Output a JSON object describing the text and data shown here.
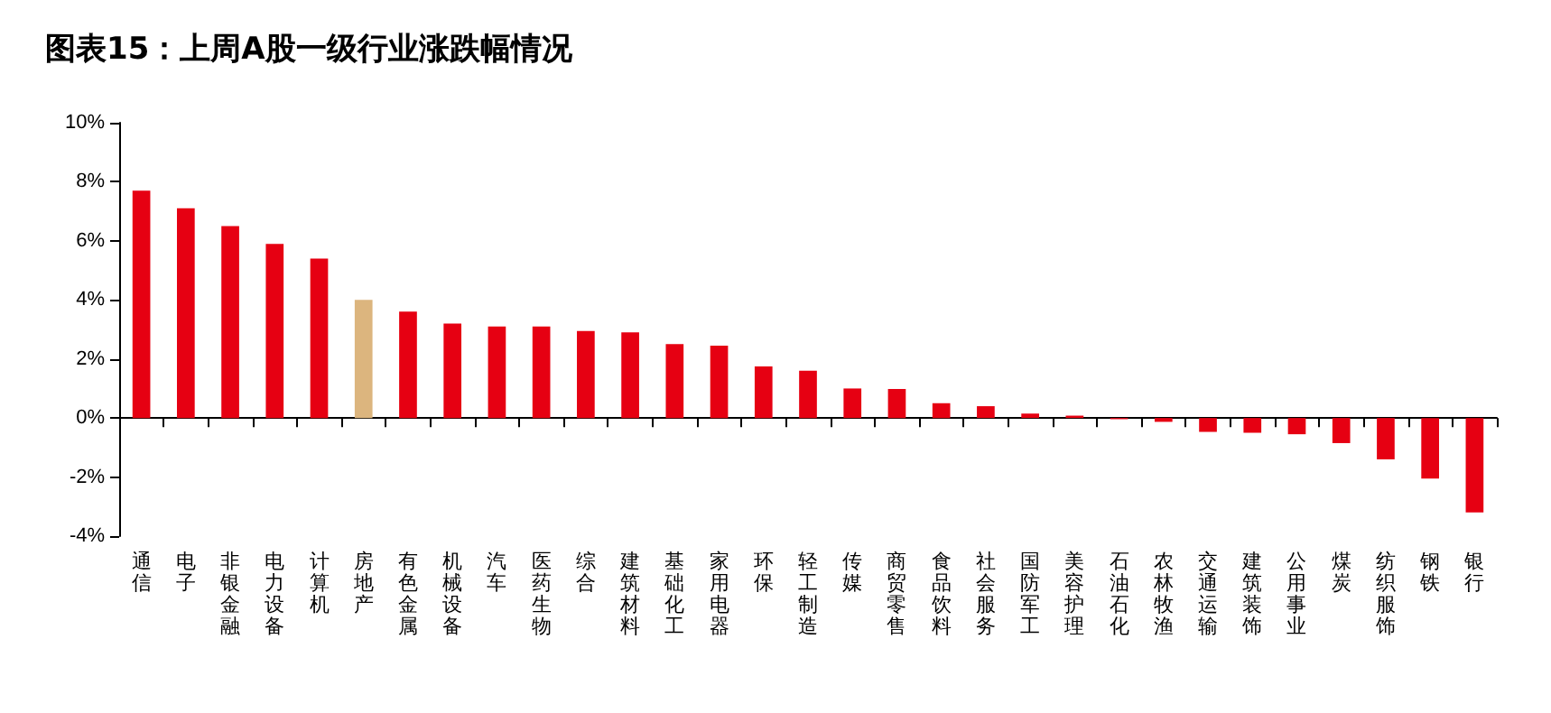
{
  "chart_data": {
    "type": "bar",
    "title": "图表15：上周A股一级行业涨跌幅情况",
    "categories": [
      "通信",
      "电子",
      "非银金融",
      "电力设备",
      "计算机",
      "房地产",
      "有色金属",
      "机械设备",
      "汽车",
      "医药生物",
      "综合",
      "建筑材料",
      "基础化工",
      "家用电器",
      "环保",
      "轻工制造",
      "传媒",
      "商贸零售",
      "食品饮料",
      "社会服务",
      "国防军工",
      "美容护理",
      "石油石化",
      "农林牧渔",
      "交通运输",
      "建筑装饰",
      "公用事业",
      "煤炭",
      "纺织服饰",
      "钢铁",
      "银行"
    ],
    "values": [
      7.7,
      7.1,
      6.5,
      5.9,
      5.4,
      4.0,
      3.6,
      3.2,
      3.1,
      3.1,
      2.95,
      2.9,
      2.5,
      2.45,
      1.75,
      1.6,
      1.0,
      0.98,
      0.5,
      0.4,
      0.15,
      0.08,
      -0.04,
      -0.13,
      -0.47,
      -0.5,
      -0.55,
      -0.85,
      -1.4,
      -2.05,
      -3.2
    ],
    "colors": [
      "#e60012",
      "#e60012",
      "#e60012",
      "#e60012",
      "#e60012",
      "#dcb57e",
      "#e60012",
      "#e60012",
      "#e60012",
      "#e60012",
      "#e60012",
      "#e60012",
      "#e60012",
      "#e60012",
      "#e60012",
      "#e60012",
      "#e60012",
      "#e60012",
      "#e60012",
      "#e60012",
      "#e60012",
      "#e60012",
      "#e60012",
      "#e60012",
      "#e60012",
      "#e60012",
      "#e60012",
      "#e60012",
      "#e60012",
      "#e60012",
      "#e60012"
    ],
    "ylim": [
      -4,
      10
    ],
    "yticks": [
      {
        "value": -4,
        "label": "-4%"
      },
      {
        "value": -2,
        "label": "-2%"
      },
      {
        "value": 0,
        "label": "0%"
      },
      {
        "value": 2,
        "label": "2%"
      },
      {
        "value": 4,
        "label": "4%"
      },
      {
        "value": 6,
        "label": "6%"
      },
      {
        "value": 8,
        "label": "8%"
      },
      {
        "value": 10,
        "label": "10%"
      }
    ]
  }
}
